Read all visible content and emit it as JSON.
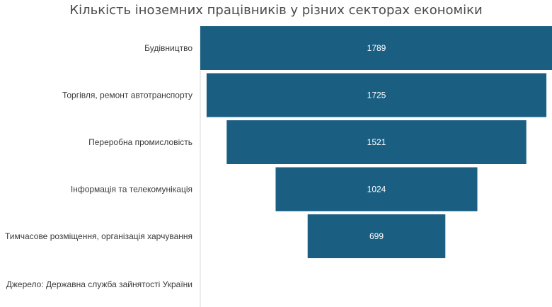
{
  "chart_data": {
    "type": "bar",
    "subtype": "funnel",
    "title": "Кількість іноземних працівників у різних секторах економіки",
    "categories": [
      "Будівництво",
      "Торгівля, ремонт автотранспорту",
      "Переробна промисловість",
      "Інформація та телекомунікація",
      "Тимчасове розміщення, організація харчування"
    ],
    "values": [
      1789,
      1725,
      1521,
      1024,
      699
    ],
    "extra_category_label": "Джерело: Державна служба зайнятості України",
    "bar_color": "#1a5f82",
    "grid": false,
    "legend": "none"
  }
}
